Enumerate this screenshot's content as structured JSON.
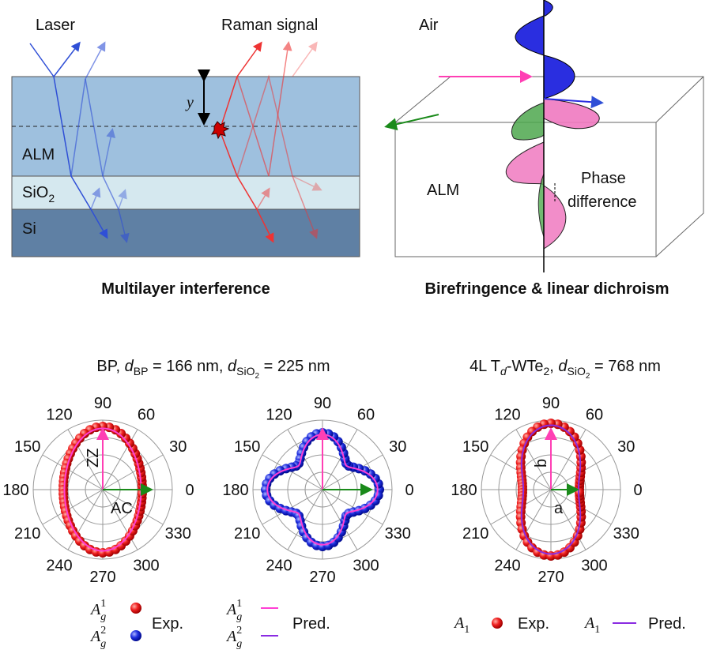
{
  "top_left": {
    "laser": "Laser",
    "raman": "Raman signal",
    "depth": "y",
    "alm": "ALM",
    "sio2": [
      "SiO",
      "2"
    ],
    "si": "Si",
    "caption": "Multilayer interference"
  },
  "top_right": {
    "air": "Air",
    "alm": "ALM",
    "phase": [
      "Phase",
      "difference"
    ],
    "caption": "Birefringence & linear dichroism"
  },
  "titles": [
    [
      "BP, ",
      "d",
      "BP",
      " = 166 nm, ",
      "d",
      "SiO",
      "2",
      " = 225 nm"
    ],
    [
      "4L T",
      "d",
      "-WTe",
      "2",
      ", ",
      "d",
      "SiO",
      "2",
      " = 768 nm"
    ]
  ],
  "polar_plots": [
    {
      "angles": [
        0,
        30,
        60,
        90,
        120,
        150,
        180,
        210,
        240,
        270,
        300,
        330
      ],
      "axis_labels": [
        "ZZ",
        "AC"
      ]
    },
    {
      "angles": [
        0,
        30,
        60,
        90,
        120,
        150,
        180,
        210,
        240,
        270,
        300,
        330
      ]
    },
    {
      "angles": [
        0,
        30,
        60,
        90,
        120,
        150,
        180,
        210,
        240,
        270,
        300,
        330
      ],
      "axis_labels": [
        "b",
        "a"
      ]
    }
  ],
  "legends": [
    {
      "symbol": "A",
      "sub": "g",
      "sups": [
        "1",
        "2"
      ],
      "label": "Exp."
    },
    {
      "symbol": "A",
      "sub": "g",
      "sups": [
        "1",
        "2"
      ],
      "label": "Pred."
    },
    {
      "symbol": "A",
      "sub": "1",
      "labels": [
        "Exp.",
        "Pred."
      ]
    }
  ]
}
